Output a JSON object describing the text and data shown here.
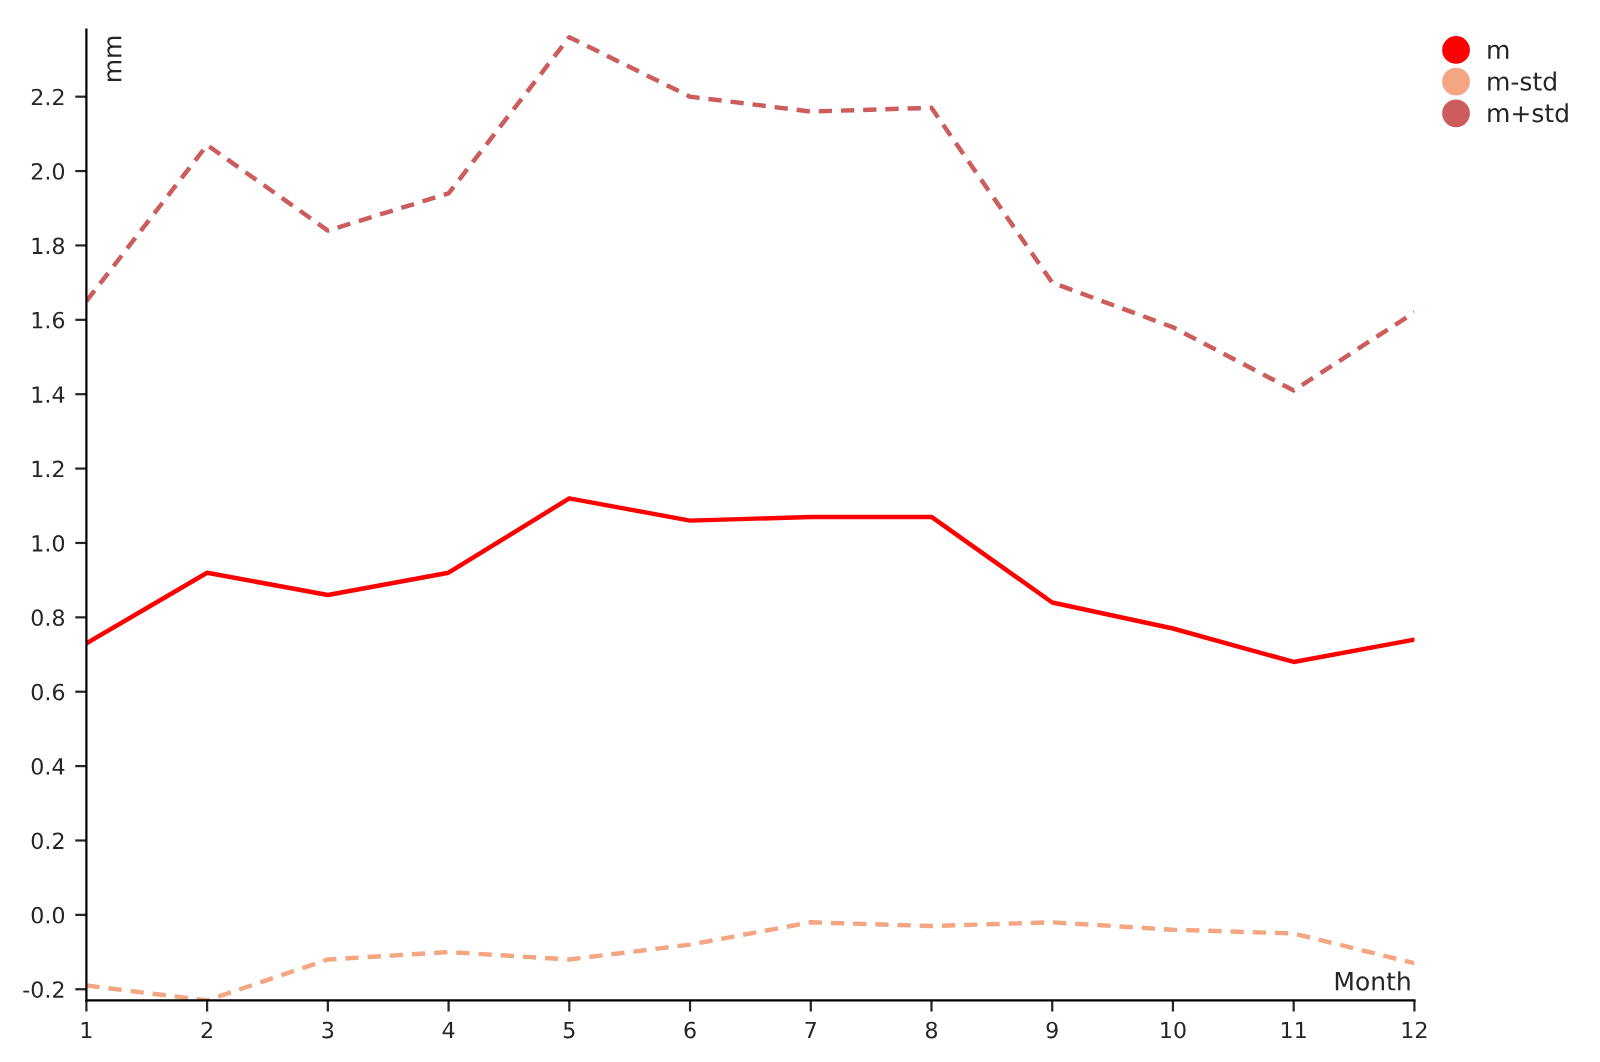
{
  "chart_data": {
    "type": "line",
    "xlabel": "Month",
    "ylabel": "mm",
    "x": [
      1,
      2,
      3,
      4,
      5,
      6,
      7,
      8,
      9,
      10,
      11,
      12
    ],
    "xlim": [
      1,
      12
    ],
    "xticks": [
      1,
      2,
      3,
      4,
      5,
      6,
      7,
      8,
      9,
      10,
      11,
      12
    ],
    "ylim": [
      -0.23,
      2.38
    ],
    "yticks": [
      -0.2,
      {
        "value": 0,
        "label": "0.0"
      },
      0.2,
      0.4,
      0.6,
      0.8,
      {
        "value": 1,
        "label": "1.0"
      },
      1.2,
      1.4,
      1.6,
      1.8,
      {
        "value": 2,
        "label": "2.0"
      },
      2.2
    ],
    "grid": false,
    "legend": "top right",
    "marker": "none",
    "series": [
      {
        "name": "m",
        "color": "#ff0000",
        "line_style": "solid",
        "values": [
          0.73,
          0.92,
          0.86,
          0.92,
          1.12,
          1.06,
          1.07,
          1.07,
          0.84,
          0.77,
          0.68,
          0.74
        ]
      },
      {
        "name": "m-std",
        "color": "#f4a582",
        "line_style": "dashed",
        "values": [
          -0.19,
          -0.23,
          -0.12,
          -0.1,
          -0.12,
          -0.08,
          -0.02,
          -0.03,
          -0.02,
          -0.04,
          -0.05,
          -0.13
        ]
      },
      {
        "name": "m+std",
        "color": "#cd5c5c",
        "line_style": "dashed",
        "values": [
          1.65,
          2.07,
          1.84,
          1.94,
          2.36,
          2.2,
          2.16,
          2.17,
          1.7,
          1.58,
          1.41,
          1.62
        ]
      }
    ]
  }
}
